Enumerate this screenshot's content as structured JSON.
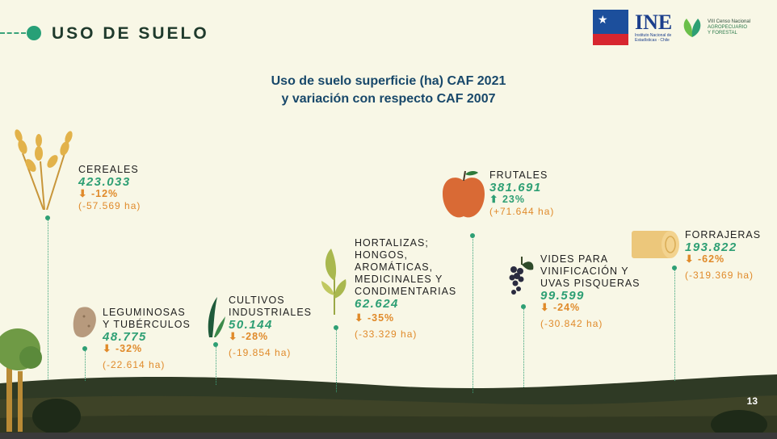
{
  "header": {
    "title": "USO DE SUELO",
    "logo_gob_text": "GOBIERNO DE CHILE",
    "logo_ine_text": "INE",
    "logo_ine_sub": "Instituto Nacional de Estadísticas · Chile",
    "logo_censo_line1": "VIII Censo Nacional",
    "logo_censo_line2": "AGROPECUARIO",
    "logo_censo_line3": "Y FORESTAL"
  },
  "subtitle": {
    "line1": "Uso de suelo superficie (ha) CAF 2021",
    "line2": "y variación con respecto CAF 2007"
  },
  "categories": [
    {
      "name_lines": [
        "CEREALES"
      ],
      "value": "423.033",
      "change": "-12%",
      "direction": "down",
      "delta": "(-57.569 ha)",
      "icon": "wheat-icon"
    },
    {
      "name_lines": [
        "LEGUMINOSAS",
        "Y TUBÉRCULOS"
      ],
      "value": "48.775",
      "change": "-32%",
      "direction": "down",
      "delta": "(-22.614 ha)",
      "icon": "potato-icon"
    },
    {
      "name_lines": [
        "CULTIVOS",
        "INDUSTRIALES"
      ],
      "value": "50.144",
      "change": "-28%",
      "direction": "down",
      "delta": "(-19.854 ha)",
      "icon": "leaf-icon"
    },
    {
      "name_lines": [
        "HORTALIZAS;",
        "HONGOS,",
        "AROMÁTICAS,",
        "MEDICINALES Y",
        "CONDIMENTARIAS"
      ],
      "value": "62.624",
      "change": "-35%",
      "direction": "down",
      "delta": "(-33.329 ha)",
      "icon": "sprout-icon"
    },
    {
      "name_lines": [
        "FRUTALES"
      ],
      "value": "381.691",
      "change": "23%",
      "direction": "up",
      "delta": "(+71.644 ha)",
      "icon": "apple-icon"
    },
    {
      "name_lines": [
        "VIDES PARA",
        "VINIFICACIÓN Y",
        "UVAS PISQUERAS"
      ],
      "value": "99.599",
      "change": "-24%",
      "direction": "down",
      "delta": "(-30.842 ha)",
      "icon": "grapes-icon"
    },
    {
      "name_lines": [
        "FORRAJERAS"
      ],
      "value": "193.822",
      "change": "-62%",
      "direction": "down",
      "delta": "(-319.369 ha)",
      "icon": "hay-bale-icon"
    }
  ],
  "page_number": "13",
  "colors": {
    "background": "#f8f7e6",
    "green": "#2e9f74",
    "orange": "#e08a2a",
    "ground": "#2f3a25"
  }
}
